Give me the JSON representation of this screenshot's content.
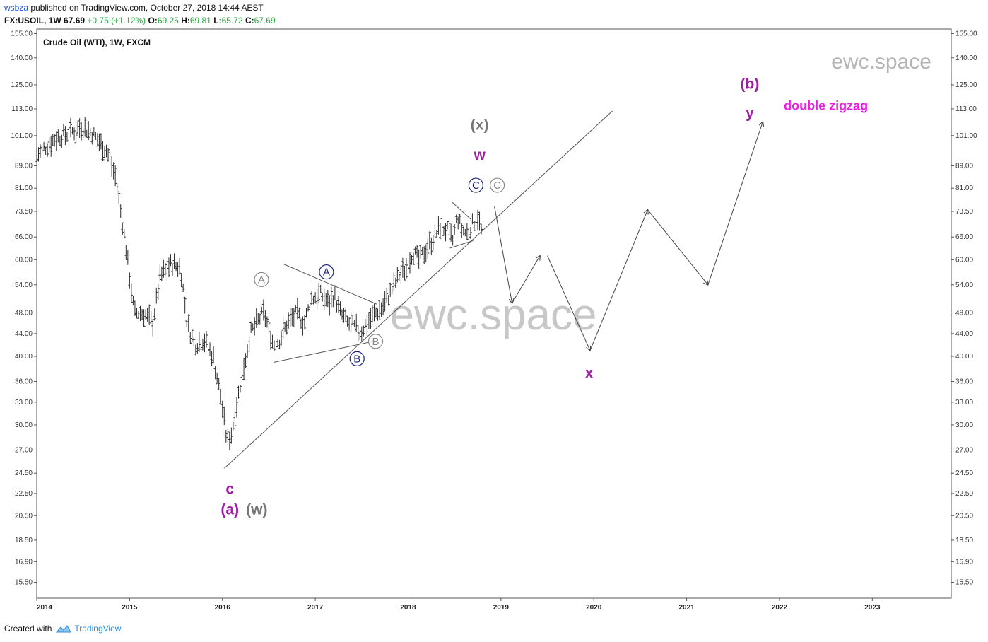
{
  "header": {
    "publisher_user": "wsbza",
    "publisher_text": "published on TradingView.com, October 27, 2018 14:44 AEST",
    "symbol": "FX:USOIL, 1W",
    "last": "67.69",
    "change": "+0.75 (+1.12%)",
    "open_label": "O:",
    "open": "69.25",
    "high_label": "H:",
    "high": "69.81",
    "low_label": "L:",
    "low": "65.72",
    "close_label": "C:",
    "close": "67.69"
  },
  "footer": {
    "created_with": "Created with",
    "brand": "TradingView"
  },
  "chart_data": {
    "type": "ohlc",
    "title": "Crude Oil (WTI), 1W, FXCM",
    "watermarks": [
      "ewc.space",
      "ewc.space"
    ],
    "y_scale": "log",
    "ylim": [
      14.5,
      158
    ],
    "xlim": [
      2014.0,
      2023.85
    ],
    "y_ticks": [
      "155.00",
      "140.00",
      "125.00",
      "113.00",
      "101.00",
      "89.00",
      "81.00",
      "73.50",
      "66.00",
      "60.00",
      "54.00",
      "48.00",
      "44.00",
      "40.00",
      "36.00",
      "33.00",
      "30.00",
      "27.00",
      "24.50",
      "22.50",
      "20.50",
      "18.50",
      "16.90",
      "15.50"
    ],
    "x_ticks": [
      {
        "t": 2014,
        "label": "2014"
      },
      {
        "t": 2015,
        "label": "2015"
      },
      {
        "t": 2016,
        "label": "2016"
      },
      {
        "t": 2017,
        "label": "2017"
      },
      {
        "t": 2018,
        "label": "2018"
      },
      {
        "t": 2019,
        "label": "2019"
      },
      {
        "t": 2020,
        "label": "2020"
      },
      {
        "t": 2021,
        "label": "2021"
      },
      {
        "t": 2022,
        "label": "2022"
      },
      {
        "t": 2023,
        "label": "2023"
      }
    ],
    "price_path": [
      [
        2014.0,
        93
      ],
      [
        2014.2,
        100
      ],
      [
        2014.35,
        102
      ],
      [
        2014.48,
        105
      ],
      [
        2014.6,
        102
      ],
      [
        2014.75,
        95
      ],
      [
        2014.85,
        85
      ],
      [
        2014.95,
        65
      ],
      [
        2015.05,
        48
      ],
      [
        2015.15,
        48
      ],
      [
        2015.25,
        46
      ],
      [
        2015.33,
        56
      ],
      [
        2015.45,
        59
      ],
      [
        2015.55,
        58
      ],
      [
        2015.62,
        46
      ],
      [
        2015.7,
        42
      ],
      [
        2015.8,
        43
      ],
      [
        2015.9,
        40
      ],
      [
        2015.98,
        34
      ],
      [
        2016.05,
        28
      ],
      [
        2016.1,
        29
      ],
      [
        2016.17,
        34
      ],
      [
        2016.3,
        44
      ],
      [
        2016.4,
        47
      ],
      [
        2016.45,
        48
      ],
      [
        2016.55,
        42
      ],
      [
        2016.62,
        43
      ],
      [
        2016.7,
        46
      ],
      [
        2016.8,
        48
      ],
      [
        2016.88,
        46
      ],
      [
        2016.96,
        51
      ],
      [
        2017.05,
        52
      ],
      [
        2017.15,
        50
      ],
      [
        2017.2,
        52
      ],
      [
        2017.27,
        48
      ],
      [
        2017.35,
        46
      ],
      [
        2017.45,
        45
      ],
      [
        2017.48,
        44
      ],
      [
        2017.55,
        46
      ],
      [
        2017.65,
        48
      ],
      [
        2017.72,
        49
      ],
      [
        2017.8,
        52
      ],
      [
        2017.9,
        56
      ],
      [
        2017.98,
        58
      ],
      [
        2018.05,
        62
      ],
      [
        2018.12,
        60
      ],
      [
        2018.2,
        63
      ],
      [
        2018.28,
        66
      ],
      [
        2018.35,
        69
      ],
      [
        2018.42,
        68
      ],
      [
        2018.48,
        65
      ],
      [
        2018.53,
        72
      ],
      [
        2018.58,
        68
      ],
      [
        2018.63,
        67
      ],
      [
        2018.7,
        70
      ],
      [
        2018.75,
        72
      ],
      [
        2018.8,
        66.5
      ]
    ],
    "projection_path": [
      [
        2018.93,
        75
      ],
      [
        2019.12,
        50
      ],
      [
        2019.42,
        61
      ],
      [
        2019.5,
        61
      ],
      [
        2019.96,
        41
      ],
      [
        2020.58,
        74
      ],
      [
        2021.23,
        54
      ],
      [
        2021.82,
        107
      ]
    ],
    "trendlines": [
      {
        "name": "lower-channel",
        "points": [
          [
            2016.02,
            25.0
          ],
          [
            2020.2,
            112
          ]
        ]
      },
      {
        "name": "triangle-upper",
        "points": [
          [
            2016.65,
            59
          ],
          [
            2017.66,
            49.8
          ]
        ]
      },
      {
        "name": "triangle-lower",
        "points": [
          [
            2016.55,
            39
          ],
          [
            2017.6,
            42.5
          ]
        ]
      },
      {
        "name": "small-triangle-upper",
        "points": [
          [
            2018.47,
            76.5
          ],
          [
            2018.68,
            71
          ]
        ]
      },
      {
        "name": "small-triangle-lower",
        "points": [
          [
            2018.45,
            63
          ],
          [
            2018.7,
            65
          ]
        ]
      }
    ],
    "wave_labels": [
      {
        "text": "c",
        "t": 2016.08,
        "price": 23.0,
        "color": "#9c1fa4",
        "style": "plain"
      },
      {
        "text": "(a)",
        "t": 2016.08,
        "price": 21.1,
        "color": "#9c1fa4",
        "style": "plain"
      },
      {
        "text": "(w)",
        "t": 2016.37,
        "price": 21.1,
        "color": "#777777",
        "style": "plain"
      },
      {
        "text": "A",
        "t": 2016.42,
        "price": 55.2,
        "color": "#888888",
        "style": "circle"
      },
      {
        "text": "A",
        "t": 2017.12,
        "price": 57.0,
        "color": "#1a237e",
        "style": "circle"
      },
      {
        "text": "B",
        "t": 2017.65,
        "price": 42.6,
        "color": "#888888",
        "style": "circle"
      },
      {
        "text": "B",
        "t": 2017.45,
        "price": 39.6,
        "color": "#1a237e",
        "style": "circle"
      },
      {
        "text": "C",
        "t": 2018.73,
        "price": 82.0,
        "color": "#1a237e",
        "style": "circle"
      },
      {
        "text": "C",
        "t": 2018.96,
        "price": 82.0,
        "color": "#888888",
        "style": "circle"
      },
      {
        "text": "(x)",
        "t": 2018.77,
        "price": 106.0,
        "color": "#777777",
        "style": "plain"
      },
      {
        "text": "w",
        "t": 2018.77,
        "price": 93.5,
        "color": "#9c1fa4",
        "style": "plain"
      },
      {
        "text": "x",
        "t": 2019.95,
        "price": 37.4,
        "color": "#9c1fa4",
        "style": "plain"
      },
      {
        "text": "(b)",
        "t": 2021.68,
        "price": 126.0,
        "color": "#9c1fa4",
        "style": "plain"
      },
      {
        "text": "y",
        "t": 2021.68,
        "price": 111.5,
        "color": "#9c1fa4",
        "style": "plain"
      }
    ],
    "annotation": {
      "text": "double zigzag",
      "t": 2022.5,
      "price": 114.5,
      "color": "#e91ee0"
    }
  }
}
